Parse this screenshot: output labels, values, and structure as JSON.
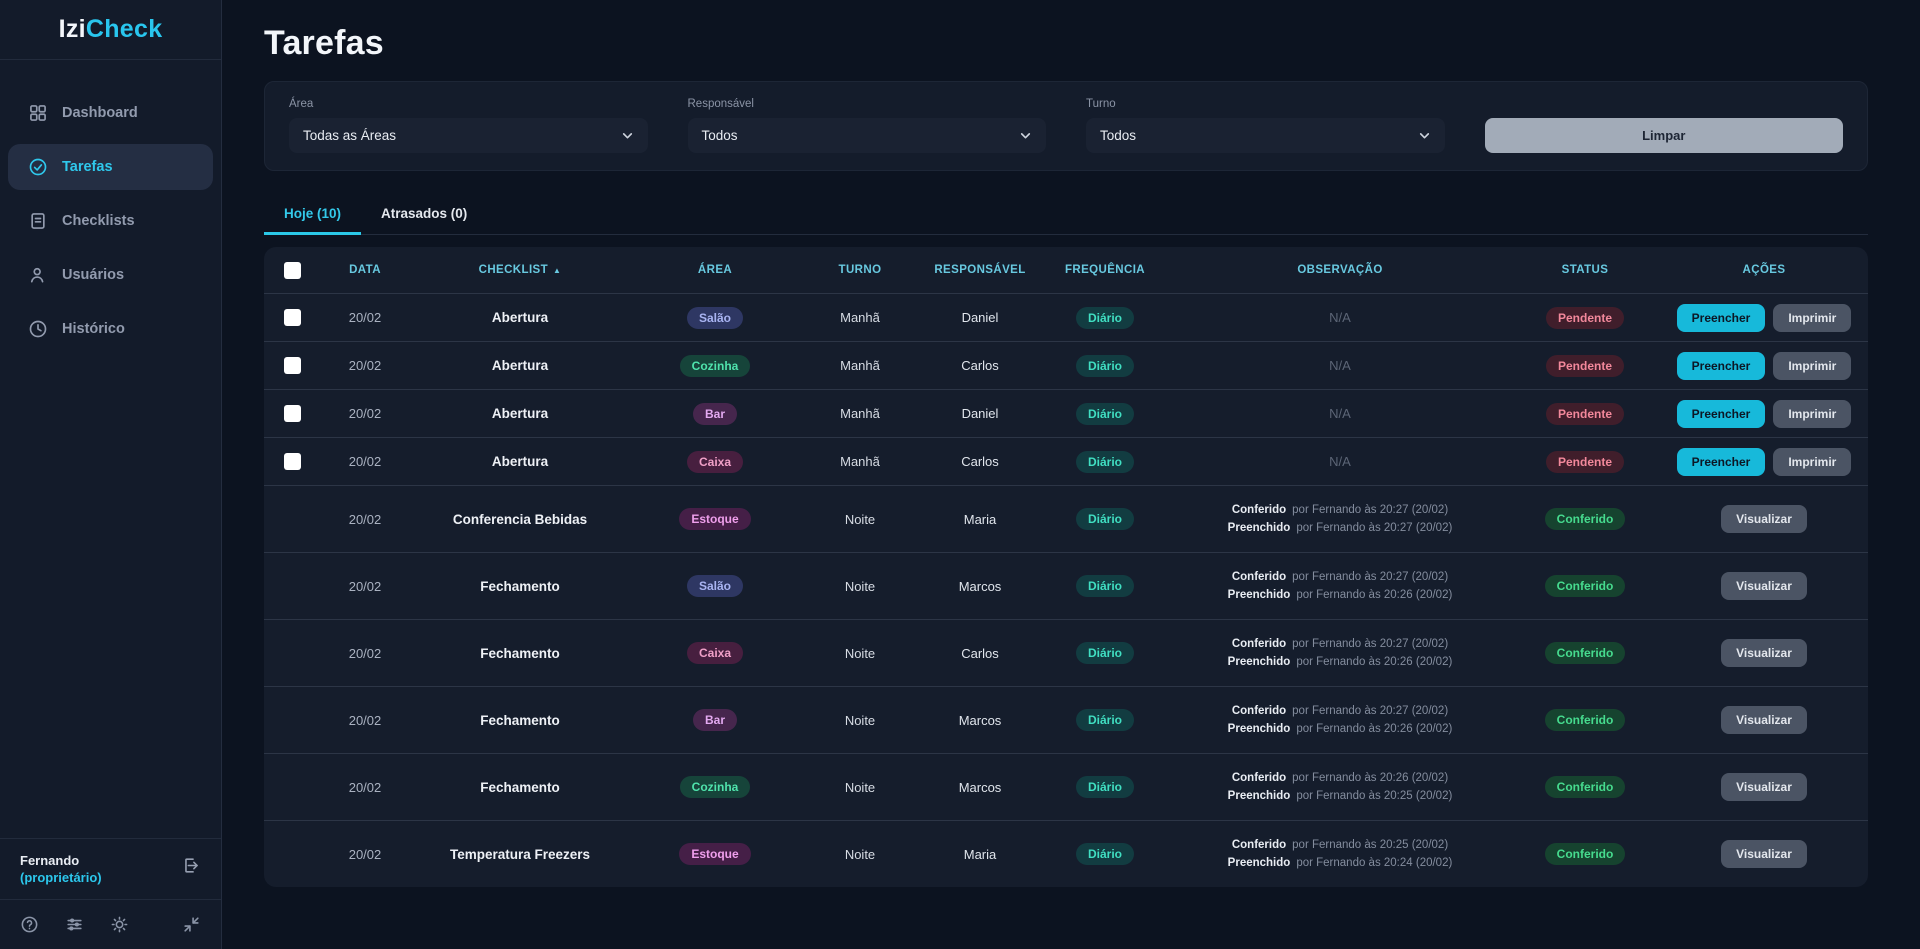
{
  "app": {
    "logo_prefix": "Izi",
    "logo_suffix": "Check"
  },
  "sidebar": {
    "items": [
      {
        "label": "Dashboard",
        "icon": "dashboard-icon",
        "active": false
      },
      {
        "label": "Tarefas",
        "icon": "tasks-icon",
        "active": true
      },
      {
        "label": "Checklists",
        "icon": "checklist-icon",
        "active": false
      },
      {
        "label": "Usuários",
        "icon": "users-icon",
        "active": false
      },
      {
        "label": "Histórico",
        "icon": "history-icon",
        "active": false
      }
    ],
    "user": {
      "name": "Fernando",
      "role": "(proprietário)",
      "logout_icon": "logout-icon"
    },
    "footer_icons": [
      "help-icon",
      "filters-icon",
      "theme-icon",
      "collapse-icon"
    ]
  },
  "page": {
    "title": "Tarefas"
  },
  "filters": {
    "area": {
      "label": "Área",
      "value": "Todas as Áreas"
    },
    "responsavel": {
      "label": "Responsável",
      "value": "Todos"
    },
    "turno": {
      "label": "Turno",
      "value": "Todos"
    },
    "clear_label": "Limpar"
  },
  "tabs": [
    {
      "label": "Hoje (10)",
      "active": true
    },
    {
      "label": "Atrasados (0)",
      "active": false
    }
  ],
  "table": {
    "headers": [
      "DATA",
      "CHECKLIST",
      "ÁREA",
      "TURNO",
      "RESPONSÁVEL",
      "FREQUÊNCIA",
      "OBSERVAÇÃO",
      "STATUS",
      "AÇÕES"
    ],
    "sorted_header": "CHECKLIST",
    "sort_direction": "asc",
    "rows": [
      {
        "selectable": true,
        "date": "20/02",
        "checklist": "Abertura",
        "area": "Salão",
        "turno": "Manhã",
        "responsavel": "Daniel",
        "frequencia": "Diário",
        "observation": {
          "na": "N/A"
        },
        "status": "Pendente",
        "actions": [
          {
            "label": "Preencher",
            "style": "primary"
          },
          {
            "label": "Imprimir",
            "style": "gray"
          }
        ]
      },
      {
        "selectable": true,
        "date": "20/02",
        "checklist": "Abertura",
        "area": "Cozinha",
        "turno": "Manhã",
        "responsavel": "Carlos",
        "frequencia": "Diário",
        "observation": {
          "na": "N/A"
        },
        "status": "Pendente",
        "actions": [
          {
            "label": "Preencher",
            "style": "primary"
          },
          {
            "label": "Imprimir",
            "style": "gray"
          }
        ]
      },
      {
        "selectable": true,
        "date": "20/02",
        "checklist": "Abertura",
        "area": "Bar",
        "turno": "Manhã",
        "responsavel": "Daniel",
        "frequencia": "Diário",
        "observation": {
          "na": "N/A"
        },
        "status": "Pendente",
        "actions": [
          {
            "label": "Preencher",
            "style": "primary"
          },
          {
            "label": "Imprimir",
            "style": "gray"
          }
        ]
      },
      {
        "selectable": true,
        "date": "20/02",
        "checklist": "Abertura",
        "area": "Caixa",
        "turno": "Manhã",
        "responsavel": "Carlos",
        "frequencia": "Diário",
        "observation": {
          "na": "N/A"
        },
        "status": "Pendente",
        "actions": [
          {
            "label": "Preencher",
            "style": "primary"
          },
          {
            "label": "Imprimir",
            "style": "gray"
          }
        ]
      },
      {
        "selectable": false,
        "date": "20/02",
        "checklist": "Conferencia Bebidas",
        "area": "Estoque",
        "turno": "Noite",
        "responsavel": "Maria",
        "frequencia": "Diário",
        "observation": {
          "entries": [
            {
              "label": "Conferido",
              "text": "por Fernando às 20:27 (20/02)"
            },
            {
              "label": "Preenchido",
              "text": "por Fernando às 20:27 (20/02)"
            }
          ]
        },
        "status": "Conferido",
        "actions": [
          {
            "label": "Visualizar",
            "style": "gray"
          }
        ]
      },
      {
        "selectable": false,
        "date": "20/02",
        "checklist": "Fechamento",
        "area": "Salão",
        "turno": "Noite",
        "responsavel": "Marcos",
        "frequencia": "Diário",
        "observation": {
          "entries": [
            {
              "label": "Conferido",
              "text": "por Fernando às 20:27 (20/02)"
            },
            {
              "label": "Preenchido",
              "text": "por Fernando às 20:26 (20/02)"
            }
          ]
        },
        "status": "Conferido",
        "actions": [
          {
            "label": "Visualizar",
            "style": "gray"
          }
        ]
      },
      {
        "selectable": false,
        "date": "20/02",
        "checklist": "Fechamento",
        "area": "Caixa",
        "turno": "Noite",
        "responsavel": "Carlos",
        "frequencia": "Diário",
        "observation": {
          "entries": [
            {
              "label": "Conferido",
              "text": "por Fernando às 20:27 (20/02)"
            },
            {
              "label": "Preenchido",
              "text": "por Fernando às 20:26 (20/02)"
            }
          ]
        },
        "status": "Conferido",
        "actions": [
          {
            "label": "Visualizar",
            "style": "gray"
          }
        ]
      },
      {
        "selectable": false,
        "date": "20/02",
        "checklist": "Fechamento",
        "area": "Bar",
        "turno": "Noite",
        "responsavel": "Marcos",
        "frequencia": "Diário",
        "observation": {
          "entries": [
            {
              "label": "Conferido",
              "text": "por Fernando às 20:27 (20/02)"
            },
            {
              "label": "Preenchido",
              "text": "por Fernando às 20:26 (20/02)"
            }
          ]
        },
        "status": "Conferido",
        "actions": [
          {
            "label": "Visualizar",
            "style": "gray"
          }
        ]
      },
      {
        "selectable": false,
        "date": "20/02",
        "checklist": "Fechamento",
        "area": "Cozinha",
        "turno": "Noite",
        "responsavel": "Marcos",
        "frequencia": "Diário",
        "observation": {
          "entries": [
            {
              "label": "Conferido",
              "text": "por Fernando às 20:26 (20/02)"
            },
            {
              "label": "Preenchido",
              "text": "por Fernando às 20:25 (20/02)"
            }
          ]
        },
        "status": "Conferido",
        "actions": [
          {
            "label": "Visualizar",
            "style": "gray"
          }
        ]
      },
      {
        "selectable": false,
        "date": "20/02",
        "checklist": "Temperatura Freezers",
        "area": "Estoque",
        "turno": "Noite",
        "responsavel": "Maria",
        "frequencia": "Diário",
        "observation": {
          "entries": [
            {
              "label": "Conferido",
              "text": "por Fernando às 20:25 (20/02)"
            },
            {
              "label": "Preenchido",
              "text": "por Fernando às 20:24 (20/02)"
            }
          ]
        },
        "status": "Conferido",
        "actions": [
          {
            "label": "Visualizar",
            "style": "gray"
          }
        ]
      }
    ]
  },
  "colors": {
    "accent_cyan": "#29c6ee",
    "header_cyan": "#68c9e0",
    "page_bg": "#0c1320",
    "sidebar_bg": "#131b2a",
    "card_bg": "#151d2c",
    "badge_pendente": "#f2889b",
    "badge_conferido": "#46db8e",
    "button_primary": "#17b9da",
    "button_gray": "#4b5464"
  }
}
